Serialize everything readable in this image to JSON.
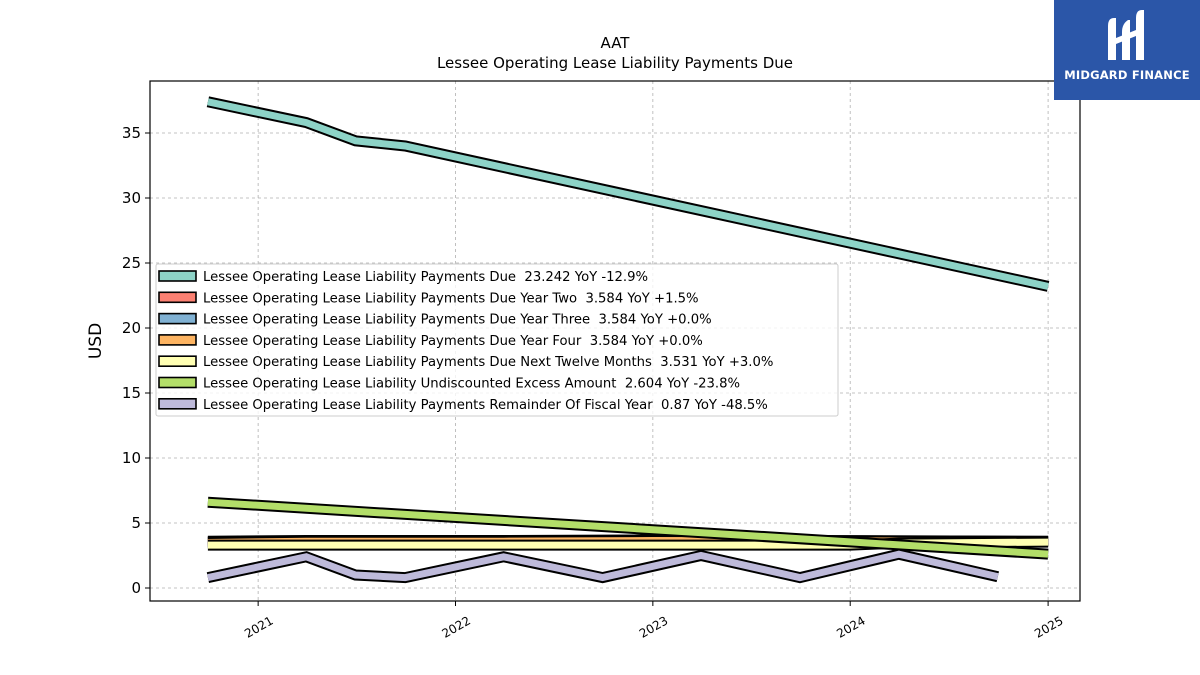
{
  "chart_data": {
    "type": "line",
    "title": "AAT",
    "subtitle": "Lessee Operating Lease Liability Payments Due",
    "ylabel": "USD",
    "xlabel": "",
    "ylim": [
      -1,
      39
    ],
    "xlim": [
      "2020-06-15",
      "2025-03-01"
    ],
    "x_ticks": [
      "2021",
      "2022",
      "2023",
      "2024",
      "2025"
    ],
    "y_ticks": [
      0,
      5,
      10,
      15,
      20,
      25,
      30,
      35
    ],
    "grid": true,
    "legend_position": "center-left",
    "series": [
      {
        "name": "Lessee Operating Lease Liability Payments Due",
        "legend": "Lessee Operating Lease Liability Payments Due  23.242 YoY -12.9%",
        "color": "#8dd3c7",
        "points": [
          [
            "2020-09-30",
            37.4
          ],
          [
            "2021-03-31",
            35.8
          ],
          [
            "2021-06-30",
            34.4
          ],
          [
            "2021-09-30",
            34.0
          ],
          [
            "2025-01-01",
            23.2
          ]
        ]
      },
      {
        "name": "Lessee Operating Lease Liability Payments Due Year Two",
        "legend": "Lessee Operating Lease Liability Payments Due Year Two  3.584 YoY +1.5%",
        "color": "#fb8072",
        "points": [
          [
            "2020-09-30",
            3.6
          ],
          [
            "2021-03-31",
            3.65
          ],
          [
            "2022-03-31",
            3.65
          ],
          [
            "2023-01-01",
            3.7
          ],
          [
            "2025-01-01",
            3.584
          ]
        ]
      },
      {
        "name": "Lessee Operating Lease Liability Payments Due Year Three",
        "legend": "Lessee Operating Lease Liability Payments Due Year Three  3.584 YoY +0.0%",
        "color": "#80b1d3",
        "points": [
          [
            "2020-09-30",
            3.55
          ],
          [
            "2021-03-31",
            3.6
          ],
          [
            "2022-03-31",
            3.6
          ],
          [
            "2023-01-01",
            3.65
          ],
          [
            "2025-01-01",
            3.584
          ]
        ]
      },
      {
        "name": "Lessee Operating Lease Liability Payments Due Year Four",
        "legend": "Lessee Operating Lease Liability Payments Due Year Four  3.584 YoY +0.0%",
        "color": "#fdb462",
        "points": [
          [
            "2020-09-30",
            3.5
          ],
          [
            "2021-03-31",
            3.6
          ],
          [
            "2022-03-31",
            3.6
          ],
          [
            "2023-01-01",
            3.65
          ],
          [
            "2025-01-01",
            3.584
          ]
        ]
      },
      {
        "name": "Lessee Operating Lease Liability Payments Due Next Twelve Months",
        "legend": "Lessee Operating Lease Liability Payments Due Next Twelve Months  3.531 YoY +3.0%",
        "color": "#ffffb3",
        "points": [
          [
            "2020-09-30",
            3.3
          ],
          [
            "2024-01-01",
            3.3
          ],
          [
            "2024-03-31",
            3.45
          ],
          [
            "2025-01-01",
            3.531
          ]
        ]
      },
      {
        "name": "Lessee Operating Lease Liability Undiscounted Excess Amount",
        "legend": "Lessee Operating Lease Liability Undiscounted Excess Amount  2.604 YoY -23.8%",
        "color": "#b3de69",
        "points": [
          [
            "2020-09-30",
            6.6
          ],
          [
            "2025-01-01",
            2.604
          ]
        ]
      },
      {
        "name": "Lessee Operating Lease Liability Payments Remainder Of Fiscal Year",
        "legend": "Lessee Operating Lease Liability Payments Remainder Of Fiscal Year  0.87 YoY -48.5%",
        "color": "#bebada",
        "points": [
          [
            "2020-09-30",
            0.8
          ],
          [
            "2021-03-31",
            2.4
          ],
          [
            "2021-06-30",
            1.0
          ],
          [
            "2021-09-30",
            0.8
          ],
          [
            "2022-03-31",
            2.4
          ],
          [
            "2022-09-30",
            0.8
          ],
          [
            "2023-03-31",
            2.5
          ],
          [
            "2023-09-30",
            0.8
          ],
          [
            "2024-03-31",
            2.6
          ],
          [
            "2024-09-30",
            0.87
          ]
        ]
      }
    ]
  },
  "logo": {
    "text": "MIDGARD FINANCE"
  }
}
